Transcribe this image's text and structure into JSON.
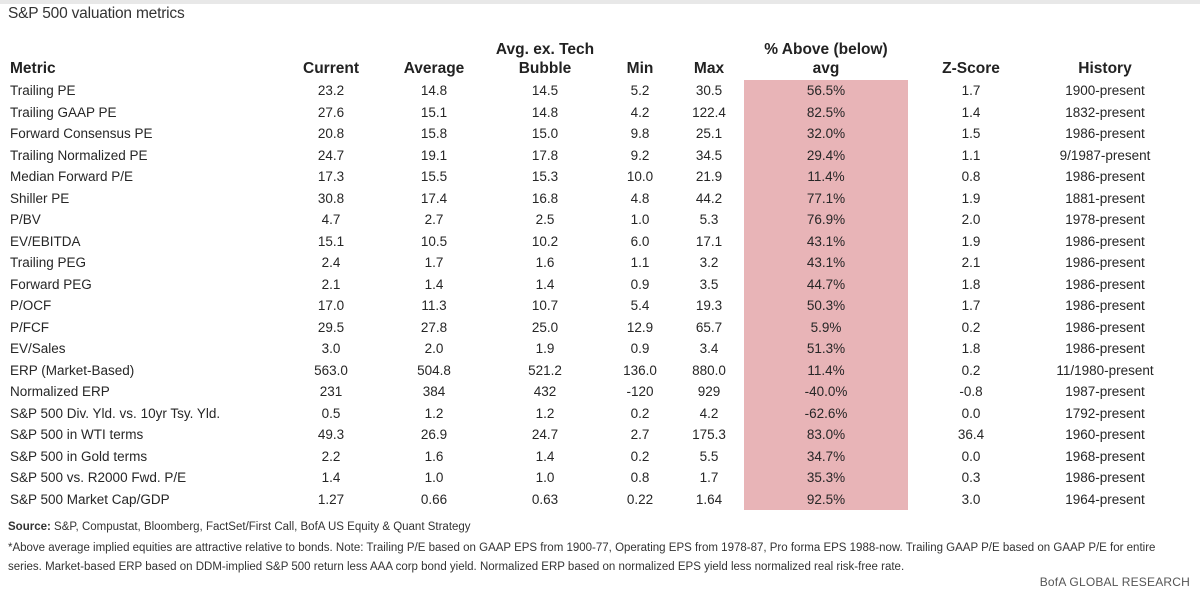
{
  "title": "S&P 500 valuation metrics",
  "colors": {
    "highlight": "#e8b4b7",
    "text": "#222222"
  },
  "table": {
    "columns": [
      "Metric",
      "Current",
      "Average",
      "Avg. ex. Tech\nBubble",
      "Min",
      "Max",
      "% Above (below)\navg",
      "Z-Score",
      "History"
    ],
    "rows": [
      [
        "Trailing PE",
        "23.2",
        "14.8",
        "14.5",
        "5.2",
        "30.5",
        "56.5%",
        "1.7",
        "1900-present"
      ],
      [
        "Trailing GAAP PE",
        "27.6",
        "15.1",
        "14.8",
        "4.2",
        "122.4",
        "82.5%",
        "1.4",
        "1832-present"
      ],
      [
        "Forward Consensus PE",
        "20.8",
        "15.8",
        "15.0",
        "9.8",
        "25.1",
        "32.0%",
        "1.5",
        "1986-present"
      ],
      [
        "Trailing Normalized PE",
        "24.7",
        "19.1",
        "17.8",
        "9.2",
        "34.5",
        "29.4%",
        "1.1",
        "9/1987-present"
      ],
      [
        "Median Forward P/E",
        "17.3",
        "15.5",
        "15.3",
        "10.0",
        "21.9",
        "11.4%",
        "0.8",
        "1986-present"
      ],
      [
        "Shiller PE",
        "30.8",
        "17.4",
        "16.8",
        "4.8",
        "44.2",
        "77.1%",
        "1.9",
        "1881-present"
      ],
      [
        "P/BV",
        "4.7",
        "2.7",
        "2.5",
        "1.0",
        "5.3",
        "76.9%",
        "2.0",
        "1978-present"
      ],
      [
        "EV/EBITDA",
        "15.1",
        "10.5",
        "10.2",
        "6.0",
        "17.1",
        "43.1%",
        "1.9",
        "1986-present"
      ],
      [
        "Trailing PEG",
        "2.4",
        "1.7",
        "1.6",
        "1.1",
        "3.2",
        "43.1%",
        "2.1",
        "1986-present"
      ],
      [
        "Forward PEG",
        "2.1",
        "1.4",
        "1.4",
        "0.9",
        "3.5",
        "44.7%",
        "1.8",
        "1986-present"
      ],
      [
        "P/OCF",
        "17.0",
        "11.3",
        "10.7",
        "5.4",
        "19.3",
        "50.3%",
        "1.7",
        "1986-present"
      ],
      [
        "P/FCF",
        "29.5",
        "27.8",
        "25.0",
        "12.9",
        "65.7",
        "5.9%",
        "0.2",
        "1986-present"
      ],
      [
        "EV/Sales",
        "3.0",
        "2.0",
        "1.9",
        "0.9",
        "3.4",
        "51.3%",
        "1.8",
        "1986-present"
      ],
      [
        "ERP (Market-Based)",
        "563.0",
        "504.8",
        "521.2",
        "136.0",
        "880.0",
        "11.4%",
        "0.2",
        "11/1980-present"
      ],
      [
        "Normalized ERP",
        "231",
        "384",
        "432",
        "-120",
        "929",
        "-40.0%",
        "-0.8",
        "1987-present"
      ],
      [
        "S&P 500 Div. Yld. vs. 10yr Tsy. Yld.",
        "0.5",
        "1.2",
        "1.2",
        "0.2",
        "4.2",
        "-62.6%",
        "0.0",
        "1792-present"
      ],
      [
        "S&P 500 in WTI terms",
        "49.3",
        "26.9",
        "24.7",
        "2.7",
        "175.3",
        "83.0%",
        "36.4",
        "1960-present"
      ],
      [
        "S&P 500 in Gold terms",
        "2.2",
        "1.6",
        "1.4",
        "0.2",
        "5.5",
        "34.7%",
        "0.0",
        "1968-present"
      ],
      [
        "S&P 500 vs. R2000 Fwd. P/E",
        "1.4",
        "1.0",
        "1.0",
        "0.8",
        "1.7",
        "35.3%",
        "0.3",
        "1986-present"
      ],
      [
        "S&P 500 Market Cap/GDP",
        "1.27",
        "0.66",
        "0.63",
        "0.22",
        "1.64",
        "92.5%",
        "3.0",
        "1964-present"
      ]
    ]
  },
  "source": {
    "label": "Source:",
    "text": " S&P, Compustat, Bloomberg, FactSet/First Call, BofA US Equity & Quant Strategy"
  },
  "footnote": "*Above average implied equities are attractive relative to bonds.  Note: Trailing P/E based on GAAP EPS from 1900-77, Operating EPS from 1978-87, Pro forma EPS 1988-now. Trailing GAAP P/E based on GAAP P/E for entire series. Market-based ERP based on DDM-implied S&P 500 return less AAA corp bond yield. Normalized ERP based on normalized EPS yield less normalized real risk-free rate.",
  "brand": "BofA GLOBAL RESEARCH"
}
